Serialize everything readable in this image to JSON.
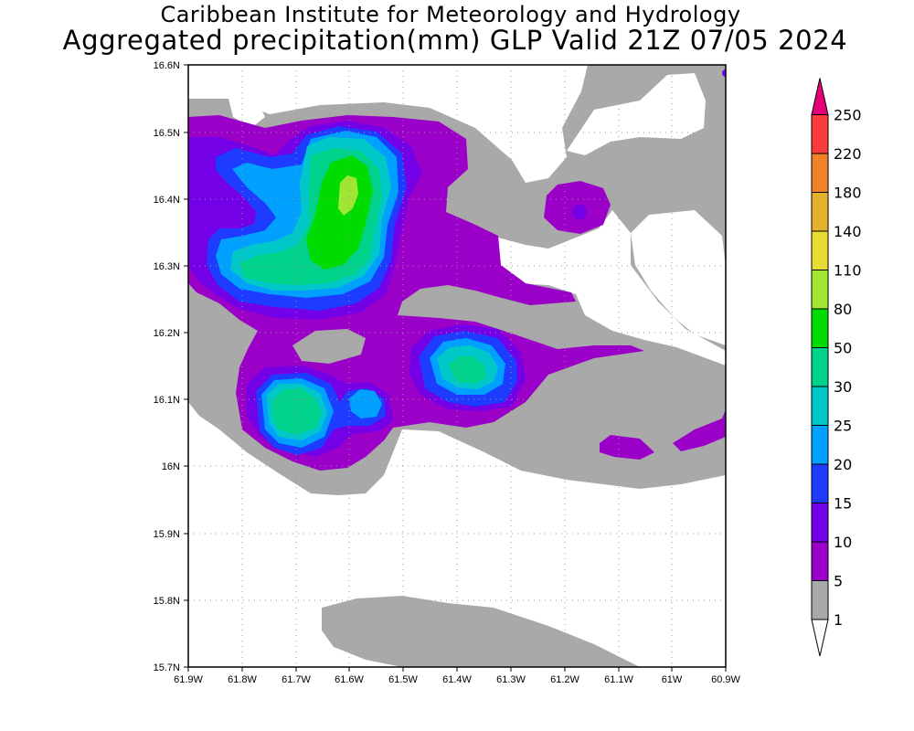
{
  "title": {
    "line1": "Caribbean Institute for Meteorology and Hydrology",
    "line2": "Aggregated precipitation(mm) GLP Valid 21Z 07/05 2024"
  },
  "map": {
    "lon_ticks": [
      "61.9W",
      "61.8W",
      "61.7W",
      "61.6W",
      "61.5W",
      "61.4W",
      "61.3W",
      "61.2W",
      "61.1W",
      "61W",
      "60.9W"
    ],
    "lat_ticks": [
      "16.6N",
      "16.5N",
      "16.4N",
      "16.3N",
      "16.2N",
      "16.1N",
      "16N",
      "15.9N",
      "15.8N",
      "15.7N"
    ],
    "lon_range": [
      -61.9,
      -60.9
    ],
    "lat_range": [
      15.7,
      16.6
    ],
    "grid": "dotted"
  },
  "colorbar": {
    "labels": [
      "1",
      "5",
      "10",
      "15",
      "20",
      "25",
      "30",
      "50",
      "80",
      "110",
      "140",
      "180",
      "220",
      "250"
    ],
    "colors": [
      "#a9a9a9",
      "#9b00c8",
      "#7300e6",
      "#1e3cff",
      "#00a0ff",
      "#00c8c8",
      "#00d28c",
      "#00dc00",
      "#a0e632",
      "#e6dc32",
      "#e6af2d",
      "#f08228",
      "#fa3c3c",
      "#e6007a"
    ]
  }
}
